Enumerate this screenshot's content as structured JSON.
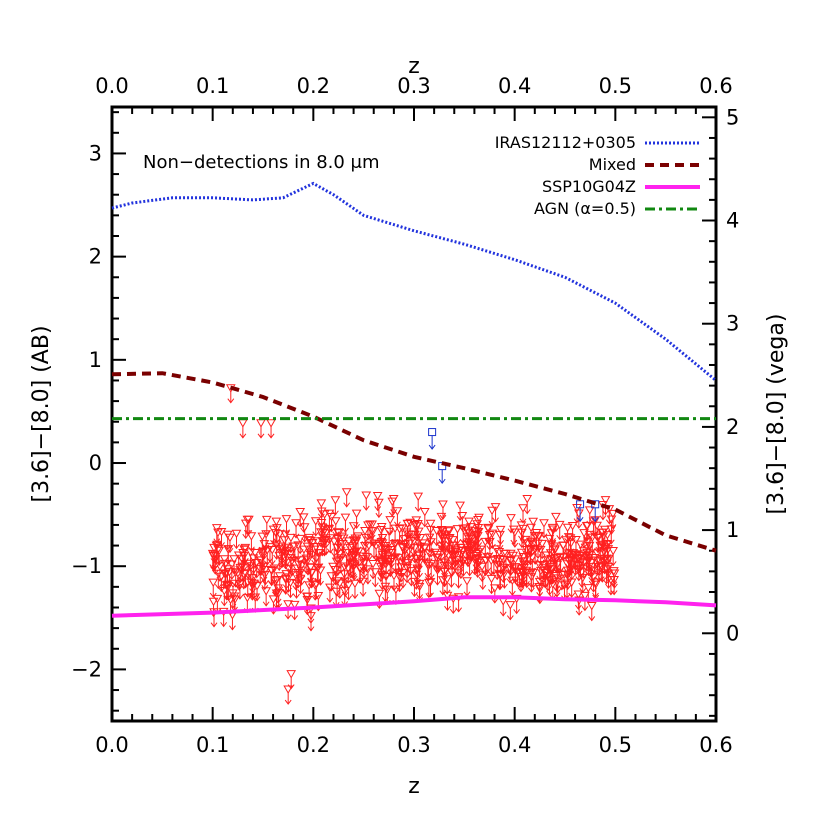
{
  "chart_data": {
    "type": "scatter",
    "xlabel_bottom": "z",
    "xlabel_top": "z",
    "ylabel_left": "[3.6]−[8.0] (AB)",
    "ylabel_right": "[3.6]−[8.0] (vega)",
    "annotation": "Non−detections in 8.0 μm",
    "xlim": [
      0.0,
      0.6
    ],
    "ylim": [
      -2.5,
      3.45
    ],
    "y2lim": [
      -0.85,
      5.1
    ],
    "x_ticks": [
      "0.0",
      "0.1",
      "0.2",
      "0.3",
      "0.4",
      "0.5",
      "0.6"
    ],
    "y_ticks": [
      "−2",
      "−1",
      "0",
      "1",
      "2",
      "3"
    ],
    "y2_ticks": [
      "0",
      "1",
      "2",
      "3",
      "4",
      "5"
    ],
    "legend_placement": "top-right",
    "series": [
      {
        "name": "IRAS12112+0305",
        "style": "dotted",
        "color": "#2233dd",
        "x": [
          0.0,
          0.02,
          0.06,
          0.1,
          0.14,
          0.17,
          0.2,
          0.22,
          0.25,
          0.3,
          0.35,
          0.4,
          0.45,
          0.5,
          0.55,
          0.6
        ],
        "y": [
          2.47,
          2.52,
          2.57,
          2.57,
          2.55,
          2.57,
          2.71,
          2.6,
          2.4,
          2.25,
          2.12,
          1.97,
          1.8,
          1.55,
          1.2,
          0.8
        ]
      },
      {
        "name": "Mixed",
        "style": "dashed",
        "color": "#7a0000",
        "x": [
          0.0,
          0.05,
          0.1,
          0.15,
          0.2,
          0.25,
          0.3,
          0.35,
          0.4,
          0.45,
          0.5,
          0.55,
          0.6
        ],
        "y": [
          0.86,
          0.87,
          0.78,
          0.64,
          0.45,
          0.22,
          0.06,
          -0.05,
          -0.17,
          -0.3,
          -0.45,
          -0.7,
          -0.85
        ]
      },
      {
        "name": "SSP10G04Z",
        "style": "solid",
        "color": "#ff22ee",
        "x": [
          0.0,
          0.1,
          0.2,
          0.3,
          0.35,
          0.4,
          0.45,
          0.5,
          0.55,
          0.6
        ],
        "y": [
          -1.48,
          -1.45,
          -1.4,
          -1.34,
          -1.3,
          -1.3,
          -1.32,
          -1.33,
          -1.35,
          -1.38
        ]
      },
      {
        "name": "AGN (α=0.5)",
        "style": "dashdot",
        "color": "#118811",
        "x": [
          0.0,
          0.6
        ],
        "y": [
          0.43,
          0.43
        ]
      }
    ],
    "points": {
      "red_upper_limits": {
        "marker": "triangle-down with down arrow",
        "color": "#ff2020",
        "x_range": [
          0.1,
          0.5
        ],
        "y_range": [
          -2.2,
          0.4
        ],
        "count": 700
      },
      "blue_upper_limits": {
        "marker": "square with down arrow",
        "color": "#1a33cc",
        "x": [
          0.318,
          0.328,
          0.465,
          0.48
        ],
        "y": [
          0.3,
          -0.03,
          -0.4,
          -0.4
        ]
      }
    }
  }
}
